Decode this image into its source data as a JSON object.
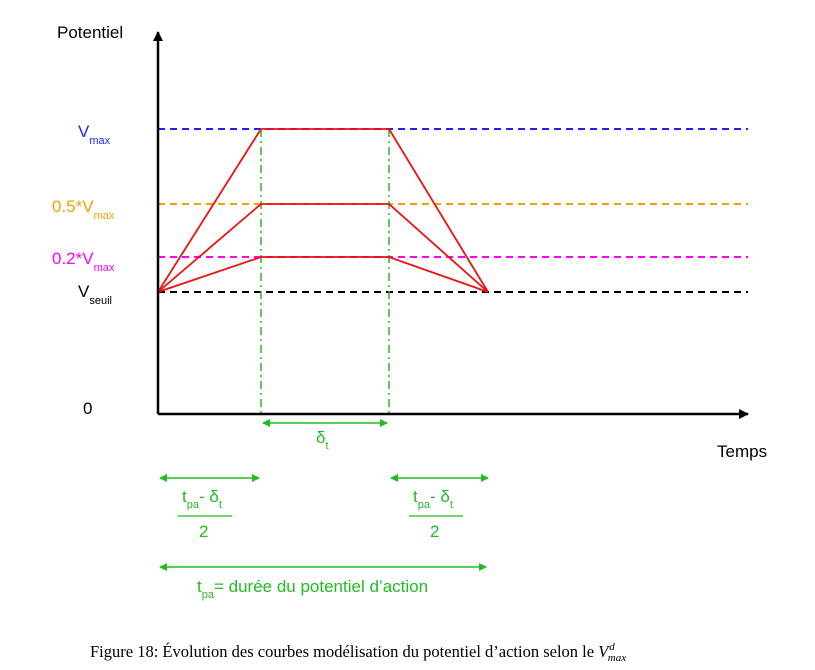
{
  "axes": {
    "y_label": "Potentiel",
    "x_label": "Temps",
    "zero_label": "0"
  },
  "levels": [
    {
      "id": "vmax",
      "base": "V",
      "sub": "max",
      "color": "#1f1fff"
    },
    {
      "id": "half",
      "base": "0.5*V",
      "sub": "max",
      "color": "#f5a000"
    },
    {
      "id": "fifth",
      "base": "0.2*V",
      "sub": "max",
      "color": "#ff00ff"
    },
    {
      "id": "seuil",
      "base": "V",
      "sub": "seuil",
      "color": "#000000"
    }
  ],
  "colors": {
    "curve": "#ee1111",
    "annotation": "#22bb22",
    "axis": "#000000"
  },
  "annotations": {
    "delta": {
      "base": "δ",
      "sub": "t"
    },
    "fraction": {
      "num_base": "t",
      "num_sub": "pa",
      "num_mid": "- δ",
      "num_sub2": "t",
      "den": "2"
    },
    "duration": {
      "base": "t",
      "sub": "pa",
      "text": "= durée du potentiel d’action"
    }
  },
  "caption": {
    "prefix": "Figure 18: Évolution des courbes modélisation du potentiel d’action selon le ",
    "var_base": "V",
    "var_sup": "d",
    "var_sub": "max"
  }
}
